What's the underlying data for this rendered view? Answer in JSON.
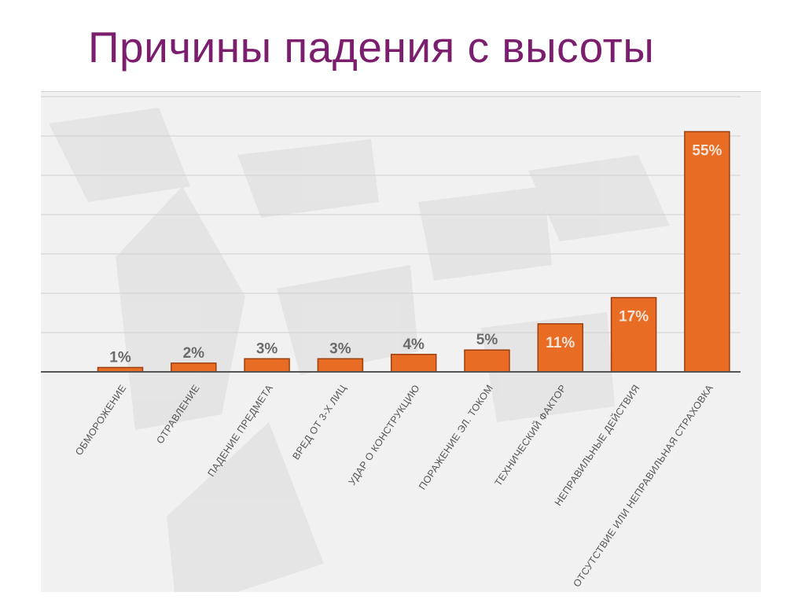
{
  "slide": {
    "title": "Причины падения с высоты"
  },
  "colors": {
    "title": "#7b1e6e",
    "bar": "#e86c24",
    "bar_border": "#9b3f10",
    "panel_background": "#f1f1f1"
  },
  "chart_data": {
    "type": "bar",
    "title": "",
    "xlabel": "",
    "ylabel": "",
    "categories": [
      "обморожение",
      "отравление",
      "падение предмета",
      "вред от 3-х лиц",
      "удар о конструкцию",
      "поражение эл. током",
      "технический фактор",
      "неправильные действия",
      "отсутствие или неправильная страховка"
    ],
    "values": [
      1,
      2,
      3,
      3,
      4,
      5,
      11,
      17,
      55
    ],
    "value_labels": [
      "1%",
      "2%",
      "3%",
      "3%",
      "4%",
      "5%",
      "11%",
      "17%",
      "55%"
    ],
    "unit": "%",
    "ylim": [
      0,
      63
    ],
    "grid": true,
    "legend": "none"
  }
}
